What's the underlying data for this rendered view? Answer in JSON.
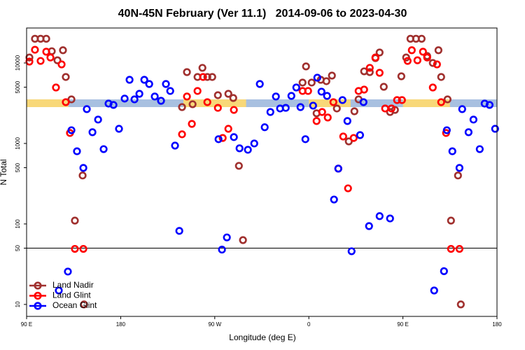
{
  "chart_data": {
    "type": "scatter",
    "title": "40N-45N February (Ver 11.1)   2014-09-06 to 2023-04-30",
    "x_label": "Longitude (deg E)",
    "y_label": "N Total",
    "log_y": true,
    "legend": "lower left",
    "xlim": [
      90,
      540
    ],
    "xticks": [
      {
        "value": 90,
        "label": "90 E"
      },
      {
        "value": 180,
        "label": "180"
      },
      {
        "value": 270,
        "label": "90 W"
      },
      {
        "value": 360,
        "label": "0"
      },
      {
        "value": 450,
        "label": "90 E"
      },
      {
        "value": 540,
        "label": "180"
      }
    ],
    "ylim": [
      7.1,
      27200
    ],
    "yticks": [
      10,
      50,
      100,
      500,
      1000,
      5000,
      10000
    ],
    "hline": 50,
    "band": {
      "range": [
        2830,
        3530
      ],
      "color": "#a8c0e0",
      "segments": [
        {
          "from": 90,
          "to": 130,
          "color": "#f8d878"
        },
        {
          "from": 240,
          "to": 300,
          "color": "#f8d878"
        },
        {
          "from": 360,
          "to": 400,
          "color": "#f8d878"
        },
        {
          "from": 450,
          "to": 495,
          "color": "#f8d878"
        }
      ]
    },
    "series": [
      {
        "name": "Land Nadir",
        "color": "#a0302e",
        "x": [
          92.7,
          98.0,
          103.4,
          108.8,
          114.1,
          119.5,
          124.8,
          127.5,
          132.9,
          143.6,
          136.2,
          144.9,
          238.7,
          243.4,
          248.8,
          253.5,
          258.2,
          262.9,
          267.6,
          273.0,
          283.0,
          287.7,
          293.1,
          297.0,
          357.3,
          354.0,
          362.7,
          367.4,
          371.4,
          376.8,
          382.1,
          386.8,
          398.2,
          403.6,
          407.6,
          412.9,
          418.3,
          423.7,
          427.7,
          431.7,
          437.7,
          442.4,
          448.5,
          453.1,
          457.2,
          462.5,
          467.9,
          473.2,
          478.6,
          484.0,
          486.6,
          492.7,
          496.0,
          502.7,
          505.4
        ],
        "values": [
          11700,
          20000,
          20000,
          20000,
          14000,
          10800,
          14400,
          6700,
          3530,
          400,
          110,
          10,
          2830,
          7700,
          3070,
          6700,
          8700,
          6700,
          6700,
          3980,
          4140,
          3670,
          527,
          63,
          9060,
          5710,
          5710,
          2370,
          6180,
          5940,
          6970,
          2720,
          1060,
          2510,
          3530,
          7870,
          7700,
          11500,
          13500,
          5060,
          2460,
          2610,
          6830,
          11700,
          20000,
          20000,
          20000,
          12200,
          10000,
          14400,
          6700,
          3530,
          110,
          400,
          10
        ]
      },
      {
        "name": "Land Glint",
        "color": "#ff0000",
        "x": [
          92.7,
          98.0,
          103.4,
          108.8,
          112.8,
          118.1,
          123.5,
          127.5,
          131.5,
          136.2,
          144.3,
          238.7,
          243.4,
          248.1,
          253.5,
          258.8,
          262.9,
          273.0,
          277.6,
          283.0,
          288.3,
          354.0,
          359.3,
          367.4,
          372.7,
          378.1,
          383.5,
          388.2,
          392.9,
          397.5,
          402.9,
          407.6,
          412.9,
          418.3,
          423.7,
          427.7,
          433.0,
          439.1,
          444.4,
          449.1,
          454.5,
          458.5,
          463.9,
          469.2,
          473.2,
          478.6,
          482.6,
          486.6,
          491.3,
          496.0,
          504.1
        ],
        "values": [
          10400,
          14600,
          10600,
          13800,
          11700,
          4960,
          9600,
          3260,
          1350,
          49,
          49,
          1300,
          3830,
          1750,
          4490,
          6700,
          3260,
          2770,
          1170,
          1520,
          2610,
          4490,
          4490,
          1900,
          2460,
          2100,
          3260,
          487,
          1220,
          277,
          1170,
          4490,
          4670,
          8700,
          11700,
          7550,
          2720,
          2720,
          3460,
          3460,
          10600,
          14400,
          10800,
          13800,
          11700,
          4960,
          9600,
          3260,
          1350,
          49,
          49
        ]
      },
      {
        "name": "Ocean Glint",
        "color": "#0000ff",
        "x": [
          120.8,
          129.5,
          132.9,
          138.2,
          144.3,
          147.6,
          153.0,
          158.4,
          163.7,
          168.4,
          173.1,
          178.4,
          183.8,
          188.5,
          193.2,
          197.9,
          202.6,
          207.3,
          212.6,
          218.6,
          223.3,
          227.4,
          232.0,
          236.1,
          273.6,
          276.9,
          281.6,
          288.3,
          293.7,
          301.7,
          307.8,
          313.1,
          317.8,
          323.2,
          328.5,
          332.5,
          337.9,
          343.3,
          348.0,
          352.0,
          356.7,
          364.1,
          368.1,
          372.1,
          377.4,
          384.1,
          388.2,
          392.2,
          396.9,
          400.9,
          409.0,
          412.3,
          417.6,
          427.7,
          437.7,
          479.9,
          489.3,
          492.0,
          497.3,
          504.1,
          506.7,
          512.8,
          517.5,
          523.5,
          528.2,
          532.9,
          538.2
        ],
        "values": [
          14.9,
          25.6,
          1460,
          800,
          497,
          2670,
          1380,
          1980,
          850,
          3130,
          3010,
          1520,
          3610,
          6180,
          3530,
          4140,
          6180,
          5480,
          3830,
          3390,
          5480,
          4490,
          940,
          82,
          1130,
          48,
          68,
          1200,
          870,
          835,
          1000,
          5480,
          1590,
          2460,
          3830,
          2720,
          2770,
          3900,
          4960,
          2830,
          1130,
          2950,
          6560,
          4400,
          3900,
          201,
          487,
          3460,
          1900,
          45.8,
          1270,
          3260,
          94,
          125,
          117,
          14.9,
          25.9,
          1460,
          800,
          497,
          2670,
          1380,
          1980,
          850,
          3130,
          3010,
          1520
        ]
      }
    ]
  }
}
